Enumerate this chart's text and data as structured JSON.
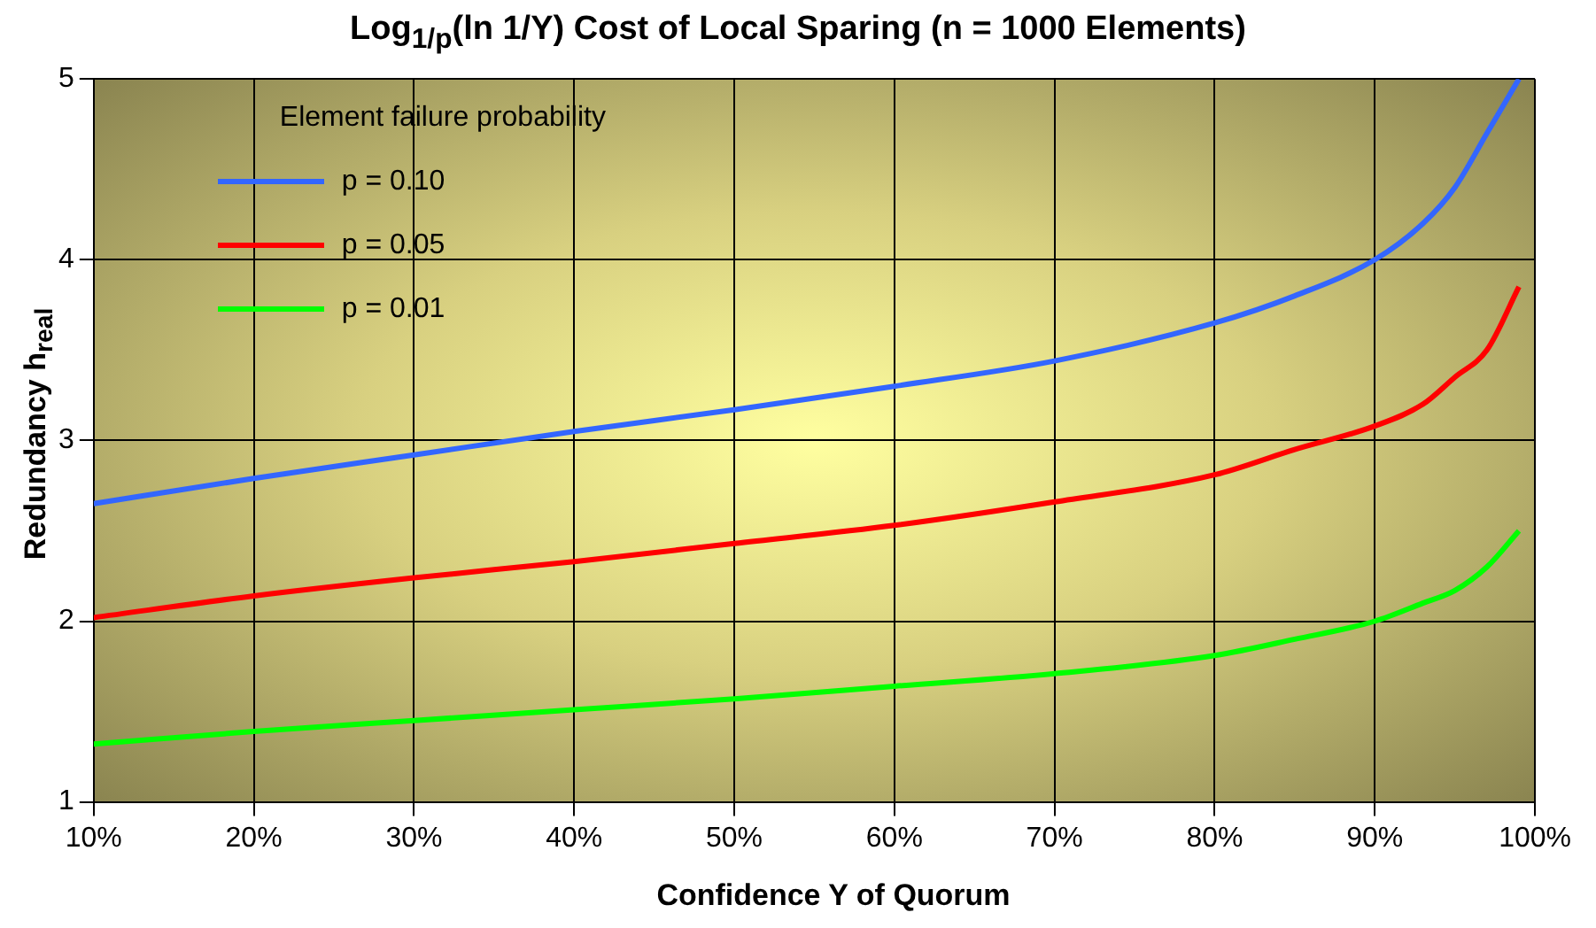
{
  "chart_data": {
    "type": "line",
    "title": "Log$_{1/p}$(ln 1/Y) Cost of Local Sparing (n = 1000 Elements)",
    "xlabel": "Confidence Y of Quorum",
    "ylabel": "Redundancy h$_{real}$",
    "legend_title": "Element failure probability",
    "x": [
      10,
      20,
      30,
      40,
      50,
      60,
      70,
      80,
      85,
      90,
      93,
      95,
      97,
      99
    ],
    "series": [
      {
        "name": "p = 0.10",
        "color": "#3366ff",
        "values": [
          2.65,
          2.79,
          2.92,
          3.05,
          3.17,
          3.3,
          3.44,
          3.65,
          3.8,
          4.0,
          4.2,
          4.4,
          4.7,
          5.0
        ]
      },
      {
        "name": "p = 0.05",
        "color": "#ff0000",
        "values": [
          2.02,
          2.14,
          2.24,
          2.33,
          2.43,
          2.53,
          2.66,
          2.81,
          2.95,
          3.08,
          3.2,
          3.35,
          3.5,
          3.85
        ]
      },
      {
        "name": "p = 0.01",
        "color": "#00ff00",
        "values": [
          1.32,
          1.39,
          1.45,
          1.51,
          1.57,
          1.64,
          1.71,
          1.81,
          1.9,
          2.0,
          2.1,
          2.17,
          2.3,
          2.5
        ]
      }
    ],
    "xlim": [
      10,
      100
    ],
    "xticks": [
      {
        "value": 10,
        "label": "10%"
      },
      {
        "value": 20,
        "label": "20%"
      },
      {
        "value": 30,
        "label": "30%"
      },
      {
        "value": 40,
        "label": "40%"
      },
      {
        "value": 50,
        "label": "50%"
      },
      {
        "value": 60,
        "label": "60%"
      },
      {
        "value": 70,
        "label": "70%"
      },
      {
        "value": 80,
        "label": "80%"
      },
      {
        "value": 90,
        "label": "90%"
      },
      {
        "value": 100,
        "label": "100%"
      }
    ],
    "ylim": [
      1,
      5
    ],
    "yticks": [
      1,
      2,
      3,
      4,
      5
    ],
    "grid": true,
    "legend": "top left",
    "marker": "none",
    "line_style": "solid"
  }
}
